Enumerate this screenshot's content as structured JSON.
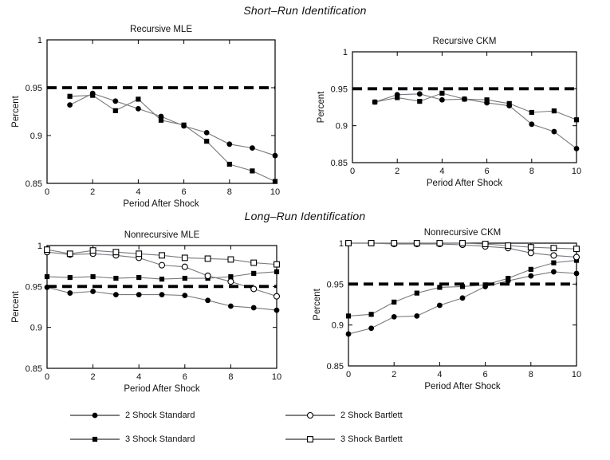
{
  "figure": {
    "section_titles": [
      {
        "id": "short-run",
        "text": "Short–Run Identification"
      },
      {
        "id": "long-run",
        "text": "Long–Run Identification"
      }
    ]
  },
  "legend": {
    "position": "below-figure-two-columns",
    "items": [
      {
        "label": "2 Shock Standard",
        "marker": "circle-filled"
      },
      {
        "label": "3 Shock Standard",
        "marker": "square-filled"
      },
      {
        "label": "2 Shock Bartlett",
        "marker": "circle-open"
      },
      {
        "label": "3 Shock Bartlett",
        "marker": "square-open"
      }
    ]
  },
  "colors": {
    "axis": "#000000",
    "series_line": "#77777f",
    "marker": "#000000",
    "refline": "#000000",
    "background": "#ffffff",
    "text": "#111111"
  },
  "chart_data": [
    {
      "type": "line",
      "title": "Recursive MLE",
      "xlabel": "Period After Shock",
      "ylabel": "Percent",
      "xlim": [
        0,
        10
      ],
      "ylim": [
        0.85,
        1
      ],
      "xticks": [
        0,
        2,
        4,
        6,
        8,
        10
      ],
      "yticks": [
        0.85,
        0.9,
        0.95,
        1
      ],
      "refline": 0.95,
      "grid": false,
      "x": [
        1,
        2,
        3,
        4,
        5,
        6,
        7,
        8,
        9,
        10
      ],
      "series": [
        {
          "name": "2 Shock Standard",
          "marker": "circle-filled",
          "values": [
            0.932,
            0.944,
            0.936,
            0.928,
            0.92,
            0.91,
            0.903,
            0.891,
            0.887,
            0.879
          ]
        },
        {
          "name": "3 Shock Standard",
          "marker": "square-filled",
          "values": [
            0.941,
            0.942,
            0.926,
            0.938,
            0.916,
            0.911,
            0.894,
            0.87,
            0.863,
            0.852
          ]
        }
      ]
    },
    {
      "type": "line",
      "title": "Recursive CKM",
      "xlabel": "Period After Shock",
      "ylabel": "Percent",
      "xlim": [
        0,
        10
      ],
      "ylim": [
        0.85,
        1
      ],
      "xticks": [
        0,
        2,
        4,
        6,
        8,
        10
      ],
      "yticks": [
        0.85,
        0.9,
        0.95,
        1
      ],
      "refline": 0.95,
      "grid": false,
      "x": [
        1,
        2,
        3,
        4,
        5,
        6,
        7,
        8,
        9,
        10
      ],
      "series": [
        {
          "name": "2 Shock Standard",
          "marker": "circle-filled",
          "values": [
            0.932,
            0.942,
            0.943,
            0.935,
            0.936,
            0.931,
            0.927,
            0.902,
            0.892,
            0.869
          ]
        },
        {
          "name": "3 Shock Standard",
          "marker": "square-filled",
          "values": [
            0.932,
            0.938,
            0.933,
            0.944,
            0.936,
            0.935,
            0.93,
            0.918,
            0.92,
            0.908
          ]
        }
      ]
    },
    {
      "type": "line",
      "title": "Nonrecursive MLE",
      "xlabel": "Period After Shock",
      "ylabel": "Percent",
      "xlim": [
        0,
        10
      ],
      "ylim": [
        0.85,
        1
      ],
      "xticks": [
        0,
        2,
        4,
        6,
        8,
        10
      ],
      "yticks": [
        0.85,
        0.9,
        0.95,
        1
      ],
      "refline": 0.95,
      "grid": false,
      "x": [
        0,
        1,
        2,
        3,
        4,
        5,
        6,
        7,
        8,
        9,
        10
      ],
      "series": [
        {
          "name": "2 Shock Standard",
          "marker": "circle-filled",
          "values": [
            0.949,
            0.942,
            0.944,
            0.94,
            0.94,
            0.94,
            0.939,
            0.933,
            0.926,
            0.924,
            0.921
          ]
        },
        {
          "name": "3 Shock Standard",
          "marker": "square-filled",
          "values": [
            0.962,
            0.961,
            0.962,
            0.96,
            0.961,
            0.959,
            0.96,
            0.96,
            0.962,
            0.966,
            0.968
          ]
        },
        {
          "name": "2 Shock Bartlett",
          "marker": "circle-open",
          "values": [
            0.992,
            0.989,
            0.99,
            0.988,
            0.985,
            0.976,
            0.974,
            0.963,
            0.956,
            0.947,
            0.938
          ]
        },
        {
          "name": "3 Shock Bartlett",
          "marker": "square-open",
          "values": [
            0.995,
            0.99,
            0.994,
            0.992,
            0.99,
            0.988,
            0.985,
            0.984,
            0.983,
            0.979,
            0.977
          ]
        }
      ]
    },
    {
      "type": "line",
      "title": "Nonrecursive CKM",
      "xlabel": "Period After Shock",
      "ylabel": "Percent",
      "xlim": [
        0,
        10
      ],
      "ylim": [
        0.85,
        1
      ],
      "xticks": [
        0,
        2,
        4,
        6,
        8,
        10
      ],
      "yticks": [
        0.85,
        0.9,
        0.95,
        1
      ],
      "refline": 0.95,
      "grid": false,
      "x": [
        0,
        1,
        2,
        3,
        4,
        5,
        6,
        7,
        8,
        9,
        10
      ],
      "series": [
        {
          "name": "2 Shock Standard",
          "marker": "circle-filled",
          "values": [
            0.889,
            0.896,
            0.91,
            0.911,
            0.924,
            0.933,
            0.947,
            0.954,
            0.96,
            0.965,
            0.963
          ]
        },
        {
          "name": "3 Shock Standard",
          "marker": "square-filled",
          "values": [
            0.911,
            0.913,
            0.928,
            0.939,
            0.946,
            0.947,
            0.949,
            0.957,
            0.968,
            0.976,
            0.979
          ]
        },
        {
          "name": "2 Shock Bartlett",
          "marker": "circle-open",
          "values": [
            1.0,
            1.0,
            0.999,
            0.999,
            0.999,
            0.998,
            0.996,
            0.994,
            0.988,
            0.985,
            0.983
          ]
        },
        {
          "name": "3 Shock Bartlett",
          "marker": "square-open",
          "values": [
            1.0,
            1.0,
            1.0,
            1.0,
            1.0,
            1.0,
            0.999,
            0.997,
            0.995,
            0.994,
            0.993
          ]
        }
      ]
    }
  ]
}
